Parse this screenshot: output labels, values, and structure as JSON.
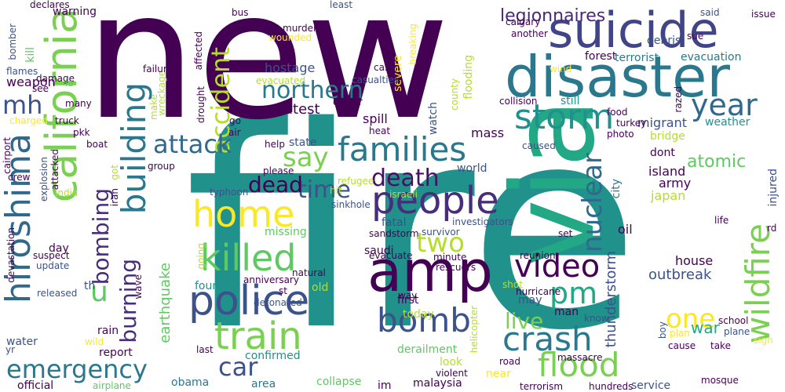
{
  "words": [
    {
      "text": "fire",
      "color": "#21918c"
    },
    {
      "text": "new",
      "color": "#440154"
    },
    {
      "text": "via",
      "color": "#22a884"
    },
    {
      "text": "disaster",
      "color": "#2a788e"
    },
    {
      "text": "suicide",
      "color": "#414487"
    },
    {
      "text": "california",
      "color": "#7ad151"
    },
    {
      "text": "amp",
      "color": "#440154"
    },
    {
      "text": "police",
      "color": "#3b528b"
    },
    {
      "text": "people",
      "color": "#472d7b"
    },
    {
      "text": "killed",
      "color": "#5ec962"
    },
    {
      "text": "train",
      "color": "#7ad151"
    },
    {
      "text": "families",
      "color": "#2a788e"
    },
    {
      "text": "storm",
      "color": "#21918c"
    },
    {
      "text": "home",
      "color": "#fde725"
    },
    {
      "text": "hiroshima",
      "color": "#31688e"
    },
    {
      "text": "building",
      "color": "#2a788e"
    },
    {
      "text": "bomb",
      "color": "#3b528b"
    },
    {
      "text": "crash",
      "color": "#2a788e"
    },
    {
      "text": "flood",
      "color": "#7ad151"
    },
    {
      "text": "wildfire",
      "color": "#7ad151"
    },
    {
      "text": "video",
      "color": "#440154"
    },
    {
      "text": "year",
      "color": "#31688e"
    },
    {
      "text": "emergency",
      "color": "#2a788e"
    },
    {
      "text": "death",
      "color": "#471063"
    },
    {
      "text": "nuclear",
      "color": "#31688e"
    },
    {
      "text": "accident",
      "color": "#b5de2b"
    },
    {
      "text": "mh",
      "color": "#3b528b"
    },
    {
      "text": "attack",
      "color": "#31688e"
    },
    {
      "text": "say",
      "color": "#7ad151"
    },
    {
      "text": "pm",
      "color": "#22a884"
    },
    {
      "text": "northern",
      "color": "#2a788e"
    },
    {
      "text": "two",
      "color": "#b5de2b"
    },
    {
      "text": "one",
      "color": "#fde725"
    },
    {
      "text": "car",
      "color": "#3b528b"
    },
    {
      "text": "time",
      "color": "#3b528b"
    },
    {
      "text": "u",
      "color": "#5ec962"
    },
    {
      "text": "dead",
      "color": "#440154"
    },
    {
      "text": "live",
      "color": "#7ad151"
    },
    {
      "text": "bombing",
      "color": "#472d7b"
    },
    {
      "text": "burning",
      "color": "#472d7b"
    },
    {
      "text": "legionnaires",
      "color": "#482878"
    },
    {
      "text": "atomic",
      "color": "#5ec962"
    },
    {
      "text": "outbreak",
      "color": "#3b528b"
    },
    {
      "text": "thunderstorm",
      "color": "#3b528b"
    },
    {
      "text": "war",
      "color": "#22a884"
    },
    {
      "text": "rt",
      "color": "#440154"
    },
    {
      "text": "latest",
      "color": "#440154"
    },
    {
      "text": "weapon",
      "color": "#440154"
    },
    {
      "text": "hostage",
      "color": "#3b528b"
    },
    {
      "text": "earthquake",
      "color": "#5ec962"
    },
    {
      "text": "mass",
      "color": "#440154"
    },
    {
      "text": "spill",
      "color": "#440154"
    },
    {
      "text": "migrant",
      "color": "#3b528b"
    },
    {
      "text": "house",
      "color": "#440154"
    },
    {
      "text": "island",
      "color": "#440154"
    },
    {
      "text": "army",
      "color": "#440154"
    },
    {
      "text": "japan",
      "color": "#b5de2b"
    },
    {
      "text": "oil",
      "color": "#440154"
    },
    {
      "text": "city",
      "color": "#2a788e"
    },
    {
      "text": "saudi",
      "color": "#440154"
    },
    {
      "text": "fatal",
      "color": "#3b528b"
    },
    {
      "text": "missing",
      "color": "#5ec962"
    },
    {
      "text": "found",
      "color": "#21918c"
    },
    {
      "text": "old",
      "color": "#b5de2b"
    },
    {
      "text": "first",
      "color": "#440154"
    },
    {
      "text": "today",
      "color": "#b5de2b"
    },
    {
      "text": "man",
      "color": "#440154"
    },
    {
      "text": "may",
      "color": "#3b528b"
    },
    {
      "text": "report",
      "color": "#440154"
    },
    {
      "text": "rain",
      "color": "#440154"
    },
    {
      "text": "water",
      "color": "#3b528b"
    },
    {
      "text": "confirmed",
      "color": "#21918c"
    },
    {
      "text": "derailment",
      "color": "#5ec962"
    },
    {
      "text": "look",
      "color": "#b5de2b"
    },
    {
      "text": "near",
      "color": "#fde725"
    },
    {
      "text": "malaysia",
      "color": "#440154"
    },
    {
      "text": "collapse",
      "color": "#5ec962"
    },
    {
      "text": "area",
      "color": "#2a788e"
    },
    {
      "text": "obama",
      "color": "#2a788e"
    },
    {
      "text": "im",
      "color": "#440154"
    },
    {
      "text": "service",
      "color": "#3b528b"
    },
    {
      "text": "official",
      "color": "#440154"
    },
    {
      "text": "debris",
      "color": "#3b528b"
    },
    {
      "text": "forest",
      "color": "#440154"
    },
    {
      "text": "terrorist",
      "color": "#2a788e"
    },
    {
      "text": "evacuation",
      "color": "#2a788e"
    },
    {
      "text": "weather",
      "color": "#21918c"
    },
    {
      "text": "bridge",
      "color": "#b5de2b"
    },
    {
      "text": "dont",
      "color": "#440154"
    },
    {
      "text": "still",
      "color": "#21918c"
    },
    {
      "text": "state",
      "color": "#3b528b"
    },
    {
      "text": "watch",
      "color": "#3b528b"
    },
    {
      "text": "world",
      "color": "#3b528b"
    },
    {
      "text": "day",
      "color": "#440154"
    },
    {
      "text": "th",
      "color": "#3b528b"
    },
    {
      "text": "injured",
      "color": "#3b528b"
    },
    {
      "text": "flooding",
      "color": "#b5de2b"
    },
    {
      "text": "severe",
      "color": "#fde725"
    },
    {
      "text": "warning",
      "color": "#440154"
    },
    {
      "text": "bomber",
      "color": "#3b528b"
    },
    {
      "text": "kill",
      "color": "#5ec962"
    },
    {
      "text": "flames",
      "color": "#3b528b"
    },
    {
      "text": "wreckage",
      "color": "#b5de2b"
    },
    {
      "text": "wounded",
      "color": "#fde725"
    },
    {
      "text": "murder",
      "color": "#440154"
    },
    {
      "text": "bus",
      "color": "#440154"
    },
    {
      "text": "calgary",
      "color": "#440154"
    },
    {
      "text": "another",
      "color": "#440154"
    },
    {
      "text": "sue",
      "color": "#440154"
    },
    {
      "text": "said",
      "color": "#3b528b"
    },
    {
      "text": "issue",
      "color": "#440154"
    },
    {
      "text": "sinkhole",
      "color": "#3b528b"
    },
    {
      "text": "typhoon",
      "color": "#3b528b"
    },
    {
      "text": "explosion",
      "color": "#3b528b"
    },
    {
      "text": "declares",
      "color": "#440154"
    },
    {
      "text": "casualties",
      "color": "#3b528b"
    },
    {
      "text": "evacuated",
      "color": "#b5de2b"
    },
    {
      "text": "life",
      "color": "#440154"
    },
    {
      "text": "plane",
      "color": "#3b528b"
    },
    {
      "text": "school",
      "color": "#440154"
    },
    {
      "text": "mosque",
      "color": "#440154"
    },
    {
      "text": "massacre",
      "color": "#440154"
    },
    {
      "text": "hurricane",
      "color": "#440154"
    },
    {
      "text": "terrorism",
      "color": "#440154"
    },
    {
      "text": "hundreds",
      "color": "#440154"
    },
    {
      "text": "violent",
      "color": "#440154"
    },
    {
      "text": "airplane",
      "color": "#5ec962"
    },
    {
      "text": "reunion",
      "color": "#440154"
    },
    {
      "text": "detonated",
      "color": "#3b528b"
    },
    {
      "text": "anniversary",
      "color": "#440154"
    },
    {
      "text": "natural",
      "color": "#440154"
    },
    {
      "text": "sandstorm",
      "color": "#440154"
    },
    {
      "text": "evacuate",
      "color": "#440154"
    },
    {
      "text": "investigators",
      "color": "#3b528b"
    },
    {
      "text": "survivor",
      "color": "#3b528b"
    },
    {
      "text": "minute",
      "color": "#440154"
    },
    {
      "text": "israeli",
      "color": "#b5de2b"
    },
    {
      "text": "refugee",
      "color": "#b5de2b"
    },
    {
      "text": "hit",
      "color": "#b5de2b"
    },
    {
      "text": "please",
      "color": "#440154"
    },
    {
      "text": "help",
      "color": "#440154"
    },
    {
      "text": "group",
      "color": "#440154"
    },
    {
      "text": "heat",
      "color": "#440154"
    },
    {
      "text": "officer",
      "color": "#440154"
    },
    {
      "text": "county",
      "color": "#b5de2b"
    },
    {
      "text": "case",
      "color": "#440154"
    },
    {
      "text": "breaking",
      "color": "#fde725"
    },
    {
      "text": "least",
      "color": "#3b528b"
    },
    {
      "text": "wind",
      "color": "#fde725"
    },
    {
      "text": "collision",
      "color": "#440154"
    },
    {
      "text": "food",
      "color": "#440154"
    },
    {
      "text": "turkey",
      "color": "#440154"
    },
    {
      "text": "photo",
      "color": "#440154"
    },
    {
      "text": "caused",
      "color": "#3b528b"
    },
    {
      "text": "razed",
      "color": "#440154"
    },
    {
      "text": "set",
      "color": "#440154"
    },
    {
      "text": "boy",
      "color": "#3b528b"
    },
    {
      "text": "sign",
      "color": "#fde725"
    },
    {
      "text": "take",
      "color": "#440154"
    },
    {
      "text": "cause",
      "color": "#440154"
    },
    {
      "text": "plan",
      "color": "#fde725"
    },
    {
      "text": "road",
      "color": "#440154"
    },
    {
      "text": "know",
      "color": "#3b528b"
    },
    {
      "text": "shot",
      "color": "#b5de2b"
    },
    {
      "text": "way",
      "color": "#440154"
    },
    {
      "text": "rd",
      "color": "#440154"
    },
    {
      "text": "st",
      "color": "#440154"
    },
    {
      "text": "wave",
      "color": "#440154"
    },
    {
      "text": "going",
      "color": "#b5de2b"
    },
    {
      "text": "helicopter",
      "color": "#b5de2b"
    },
    {
      "text": "rescuers",
      "color": "#440154"
    },
    {
      "text": "last",
      "color": "#440154"
    },
    {
      "text": "wild",
      "color": "#fde725"
    },
    {
      "text": "yr",
      "color": "#3b528b"
    },
    {
      "text": "crew",
      "color": "#440154"
    },
    {
      "text": "boat",
      "color": "#440154"
    },
    {
      "text": "pkk",
      "color": "#440154"
    },
    {
      "text": "truck",
      "color": "#440154"
    },
    {
      "text": "charged",
      "color": "#fde725"
    },
    {
      "text": "see",
      "color": "#440154"
    },
    {
      "text": "damage",
      "color": "#440154"
    },
    {
      "text": "many",
      "color": "#440154"
    },
    {
      "text": "la",
      "color": "#5ec962"
    },
    {
      "text": "back",
      "color": "#440154"
    },
    {
      "text": "affected",
      "color": "#440154"
    },
    {
      "text": "failure",
      "color": "#440154"
    },
    {
      "text": "make",
      "color": "#b5de2b"
    },
    {
      "text": "drought",
      "color": "#440154"
    },
    {
      "text": "go",
      "color": "#440154"
    },
    {
      "text": "air",
      "color": "#440154"
    },
    {
      "text": "got",
      "color": "#b5de2b"
    },
    {
      "text": "iran",
      "color": "#440154"
    },
    {
      "text": "india",
      "color": "#b5de2b"
    },
    {
      "text": "attacked",
      "color": "#440154"
    },
    {
      "text": "cairport",
      "color": "#440154"
    },
    {
      "text": "devastation",
      "color": "#440154"
    },
    {
      "text": "suspect",
      "color": "#440154"
    },
    {
      "text": "update",
      "color": "#3b528b"
    },
    {
      "text": "released",
      "color": "#3b528b"
    }
  ]
}
